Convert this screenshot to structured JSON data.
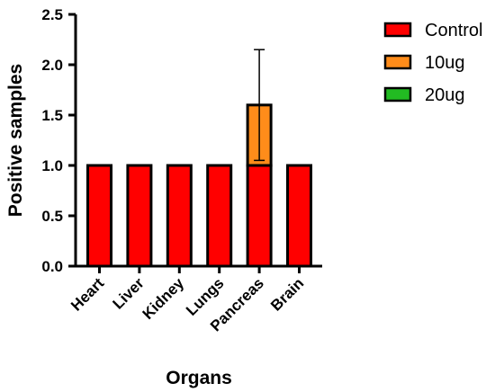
{
  "chart_data": {
    "type": "bar",
    "stacked": true,
    "categories": [
      "Heart",
      "Liver",
      "Kidney",
      "Lungs",
      "Pancreas",
      "Brain"
    ],
    "series": [
      {
        "name": "Control",
        "color": "#ff0000",
        "values": [
          1,
          1,
          1,
          1,
          1,
          1
        ]
      },
      {
        "name": "10ug",
        "color": "#ff8c1a",
        "values": [
          0,
          0,
          0,
          0,
          0.6,
          0
        ],
        "error_plus": [
          null,
          null,
          null,
          null,
          0.55,
          null
        ],
        "error_minus": [
          null,
          null,
          null,
          null,
          0.55,
          null
        ]
      },
      {
        "name": "20ug",
        "color": "#22bb22",
        "values": [
          0,
          0,
          0,
          0,
          0,
          0
        ]
      }
    ],
    "xlabel": "Organs",
    "ylabel": "Positive samples",
    "ylim": [
      0,
      2.5
    ],
    "yticks": [
      "0.0",
      "0.5",
      "1.0",
      "1.5",
      "2.0",
      "2.5"
    ],
    "grid": false,
    "legend_position": "top-right"
  }
}
